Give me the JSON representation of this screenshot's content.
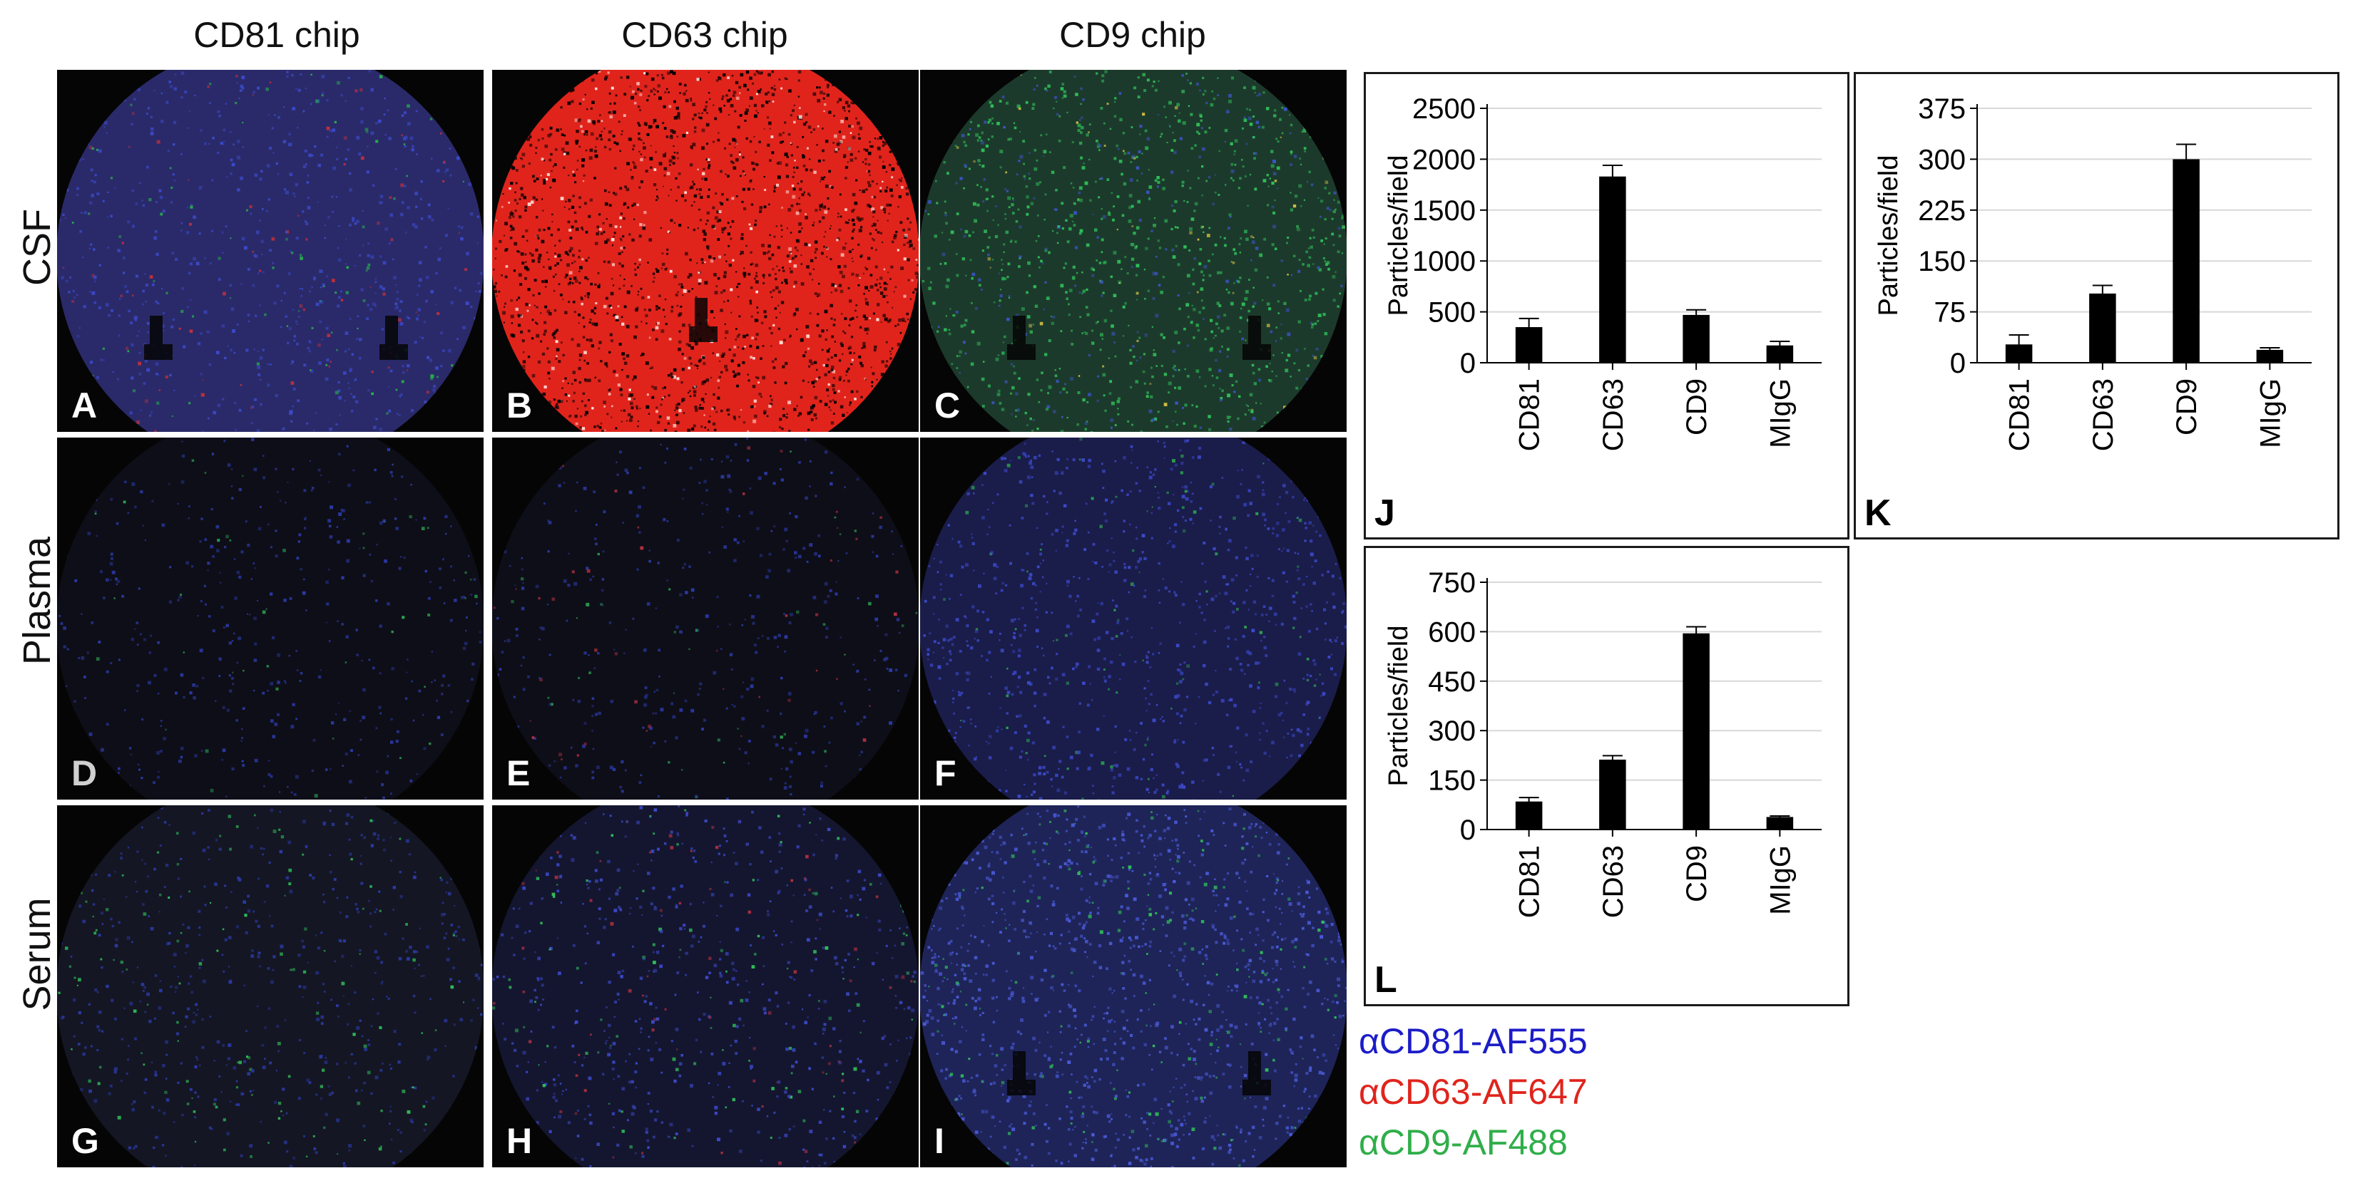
{
  "columns": [
    "CD81 chip",
    "CD63 chip",
    "CD9 chip"
  ],
  "rows": [
    "CSF",
    "Plasma",
    "Serum"
  ],
  "panels": [
    {
      "letter": "A",
      "base": "#2a2a6a",
      "dots": [
        [
          "#3b49c8",
          0.55
        ],
        [
          "#25b34a",
          0.1
        ],
        [
          "#c0303a",
          0.08
        ]
      ],
      "density": 900,
      "tint": 0.0,
      "notch": true,
      "letterColor": "#ffffff"
    },
    {
      "letter": "B",
      "base": "#e0241c",
      "dots": [
        [
          "#000000",
          0.7
        ],
        [
          "#ffe8e0",
          0.12
        ]
      ],
      "density": 2200,
      "tint": 1.0,
      "notch": true,
      "letterColor": "#ffffff"
    },
    {
      "letter": "C",
      "base": "#1c3a2c",
      "dots": [
        [
          "#2fbf58",
          0.6
        ],
        [
          "#3a55c8",
          0.2
        ],
        [
          "#d2c040",
          0.05
        ]
      ],
      "density": 1300,
      "tint": 0.0,
      "notch": true,
      "letterColor": "#ffffff"
    },
    {
      "letter": "D",
      "base": "#0e0e18",
      "dots": [
        [
          "#2b3aa8",
          0.4
        ],
        [
          "#2aa050",
          0.1
        ]
      ],
      "density": 500,
      "tint": 0.0,
      "notch": false,
      "letterColor": "#d0d0d0"
    },
    {
      "letter": "E",
      "base": "#0e0e18",
      "dots": [
        [
          "#2b3aa8",
          0.35
        ],
        [
          "#2aa050",
          0.1
        ],
        [
          "#b03040",
          0.1
        ]
      ],
      "density": 500,
      "tint": 0.0,
      "notch": false,
      "letterColor": "#ffffff"
    },
    {
      "letter": "F",
      "base": "#1a1c4a",
      "dots": [
        [
          "#3b49c8",
          0.6
        ],
        [
          "#2aa050",
          0.1
        ]
      ],
      "density": 1000,
      "tint": 0.0,
      "notch": false,
      "letterColor": "#ffffff"
    },
    {
      "letter": "G",
      "base": "#141624",
      "dots": [
        [
          "#2b3aa8",
          0.4
        ],
        [
          "#2fbf58",
          0.2
        ]
      ],
      "density": 700,
      "tint": 0.0,
      "notch": false,
      "letterColor": "#ffffff"
    },
    {
      "letter": "H",
      "base": "#141630",
      "dots": [
        [
          "#3b49c8",
          0.4
        ],
        [
          "#2fbf58",
          0.15
        ],
        [
          "#b03040",
          0.1
        ]
      ],
      "density": 800,
      "tint": 0.0,
      "notch": false,
      "letterColor": "#ffffff"
    },
    {
      "letter": "I",
      "base": "#1e2458",
      "dots": [
        [
          "#4a5ad8",
          0.7
        ],
        [
          "#2fbf58",
          0.15
        ]
      ],
      "density": 1400,
      "tint": 0.0,
      "notch": true,
      "letterColor": "#ffffff"
    }
  ],
  "chart_data": [
    {
      "type": "bar",
      "letter": "J",
      "categories": [
        "CD81",
        "CD63",
        "CD9",
        "MIgG"
      ],
      "values": [
        350,
        1830,
        470,
        170
      ],
      "errors": [
        85,
        110,
        50,
        40
      ],
      "ylabel": "Particles/field",
      "ylim": [
        0,
        2500
      ],
      "yticks": [
        0,
        500,
        1000,
        1500,
        2000,
        2500
      ],
      "grid": true,
      "bar_color": "#000000"
    },
    {
      "type": "bar",
      "letter": "K",
      "categories": [
        "CD81",
        "CD63",
        "CD9",
        "MIgG"
      ],
      "values": [
        27,
        102,
        300,
        19
      ],
      "errors": [
        14,
        12,
        22,
        3
      ],
      "ylabel": "Particles/field",
      "ylim": [
        0,
        375
      ],
      "yticks": [
        0,
        75,
        150,
        225,
        300,
        375
      ],
      "grid": true,
      "bar_color": "#000000"
    },
    {
      "type": "bar",
      "letter": "L",
      "categories": [
        "CD81",
        "CD63",
        "CD9",
        "MIgG"
      ],
      "values": [
        85,
        212,
        595,
        38
      ],
      "errors": [
        12,
        12,
        20,
        3
      ],
      "ylabel": "Particles/field",
      "ylim": [
        0,
        750
      ],
      "yticks": [
        0,
        150,
        300,
        450,
        600,
        750
      ],
      "grid": true,
      "bar_color": "#000000"
    }
  ],
  "legend": [
    {
      "label": "αCD81-AF555",
      "color": "#1c1cc8"
    },
    {
      "label": "αCD63-AF647",
      "color": "#e0241c"
    },
    {
      "label": "αCD9-AF488",
      "color": "#2fae4a"
    }
  ]
}
